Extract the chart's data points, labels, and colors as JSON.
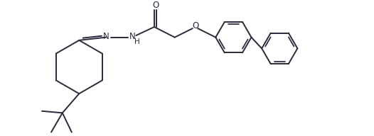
{
  "bg_color": "#ffffff",
  "line_color": "#2a2a3a",
  "line_width": 1.4,
  "figsize": [
    5.26,
    1.92
  ],
  "dpi": 100,
  "xlim": [
    0,
    10.0
  ],
  "ylim": [
    0,
    3.6
  ]
}
